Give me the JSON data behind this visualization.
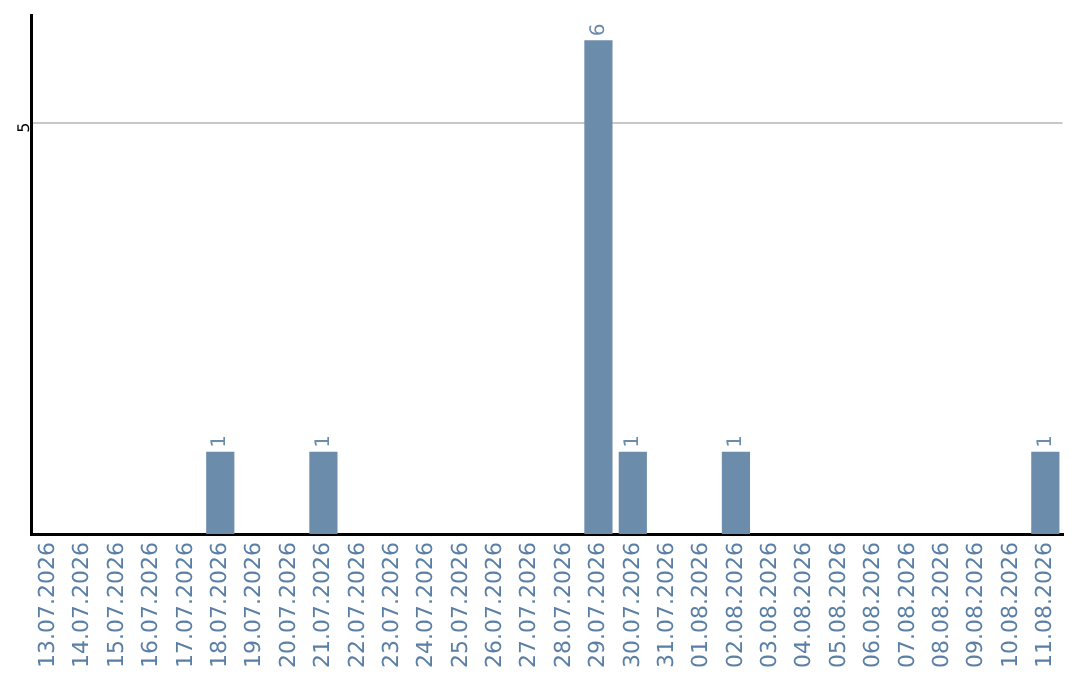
{
  "chart_data": {
    "type": "bar",
    "categories": [
      "13.07.2026",
      "14.07.2026",
      "15.07.2026",
      "16.07.2026",
      "17.07.2026",
      "18.07.2026",
      "19.07.2026",
      "20.07.2026",
      "21.07.2026",
      "22.07.2026",
      "23.07.2026",
      "24.07.2026",
      "25.07.2026",
      "26.07.2026",
      "27.07.2026",
      "28.07.2026",
      "29.07.2026",
      "30.07.2026",
      "31.07.2026",
      "01.08.2026",
      "02.08.2026",
      "03.08.2026",
      "04.08.2026",
      "05.08.2026",
      "06.08.2026",
      "07.08.2026",
      "08.08.2026",
      "09.08.2026",
      "10.08.2026",
      "11.08.2026"
    ],
    "values": [
      0,
      0,
      0,
      0,
      0,
      1,
      0,
      0,
      1,
      0,
      0,
      0,
      0,
      0,
      0,
      0,
      6,
      1,
      0,
      0,
      1,
      0,
      0,
      0,
      0,
      0,
      0,
      0,
      0,
      1
    ],
    "value_labels": [
      null,
      null,
      null,
      null,
      null,
      "1",
      null,
      null,
      "1",
      null,
      null,
      null,
      null,
      null,
      null,
      null,
      "6",
      "1",
      null,
      null,
      "1",
      null,
      null,
      null,
      null,
      null,
      null,
      null,
      null,
      "1"
    ],
    "color": "#6b8cab",
    "ylim": [
      0,
      6.3
    ],
    "yticks": [
      5
    ],
    "grid": "y"
  }
}
